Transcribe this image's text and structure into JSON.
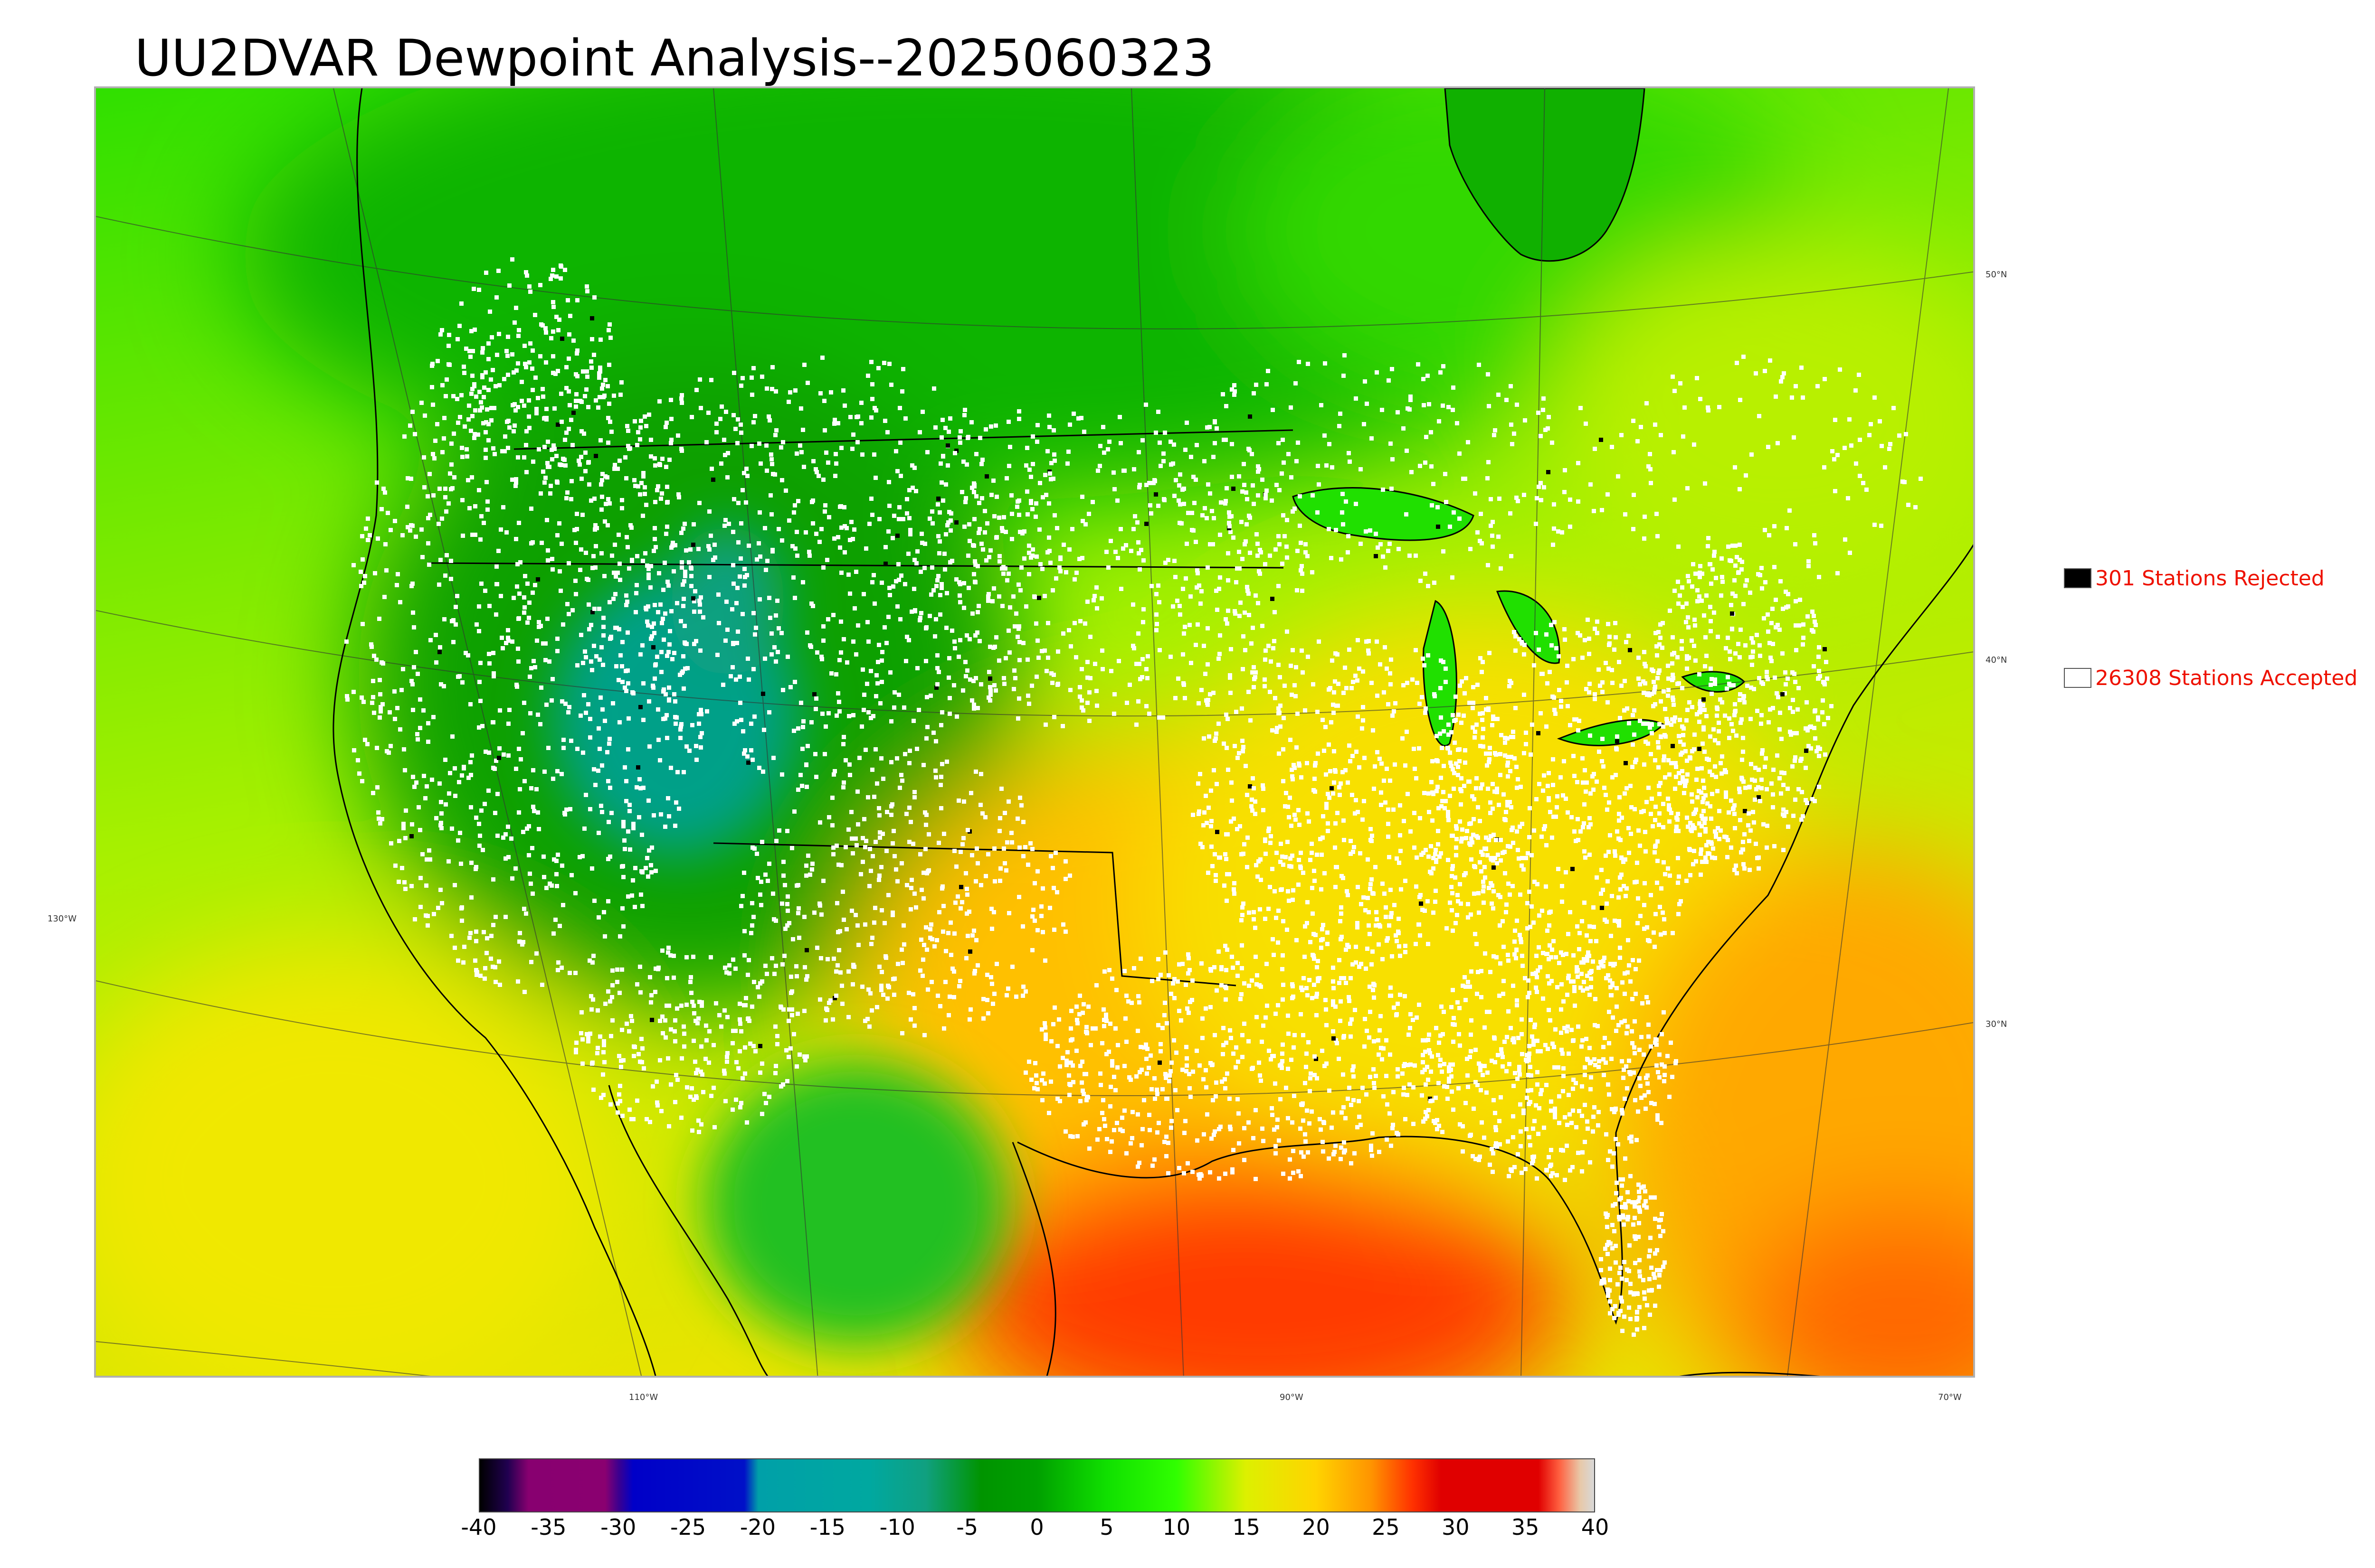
{
  "title": "UU2DVAR Dewpoint Analysis--2025060323",
  "legend": {
    "rejected": {
      "label": "301 Stations Rejected",
      "color": "#000000"
    },
    "accepted": {
      "label": "26308 Stations Accepted",
      "color": "#ffffff"
    }
  },
  "map_labels": {
    "lat": [
      "50°N",
      "40°N",
      "30°N"
    ],
    "lon": [
      "130°W",
      "110°W",
      "90°W",
      "70°W"
    ]
  },
  "colorbar": {
    "ticks": [
      "-40",
      "-35",
      "-30",
      "-25",
      "-20",
      "-15",
      "-10",
      "-5",
      "0",
      "5",
      "10",
      "15",
      "20",
      "25",
      "30",
      "35",
      "40"
    ],
    "range": [
      -40,
      40
    ],
    "stops": [
      {
        "v": -40,
        "c": "#000000"
      },
      {
        "v": -38,
        "c": "#200050"
      },
      {
        "v": -36.5,
        "c": "#880070"
      },
      {
        "v": -31,
        "c": "#8a0070"
      },
      {
        "v": -30,
        "c": "#3a0090"
      },
      {
        "v": -29,
        "c": "#0000c8"
      },
      {
        "v": -21,
        "c": "#0010c8"
      },
      {
        "v": -20,
        "c": "#00a0a8"
      },
      {
        "v": -12,
        "c": "#00a8a0"
      },
      {
        "v": -8,
        "c": "#10a080"
      },
      {
        "v": -4,
        "c": "#009400"
      },
      {
        "v": 0,
        "c": "#00a000"
      },
      {
        "v": 5,
        "c": "#10e000"
      },
      {
        "v": 10,
        "c": "#30ff00"
      },
      {
        "v": 15,
        "c": "#ddf000"
      },
      {
        "v": 20,
        "c": "#ffd400"
      },
      {
        "v": 24,
        "c": "#ff9400"
      },
      {
        "v": 27,
        "c": "#ff3000"
      },
      {
        "v": 29,
        "c": "#e00000"
      },
      {
        "v": 36,
        "c": "#e00000"
      },
      {
        "v": 37.5,
        "c": "#ff6040"
      },
      {
        "v": 39,
        "c": "#e8c8a8"
      },
      {
        "v": 40,
        "c": "#d8d8d8"
      }
    ]
  }
}
